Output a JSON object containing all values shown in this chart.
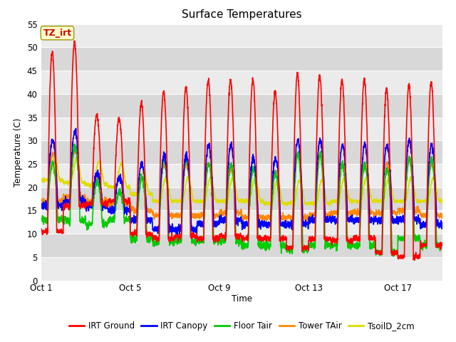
{
  "title": "Surface Temperatures",
  "ylabel": "Temperature (C)",
  "xlabel": "Time",
  "xlim_days": 18,
  "ylim": [
    0,
    55
  ],
  "yticks": [
    0,
    5,
    10,
    15,
    20,
    25,
    30,
    35,
    40,
    45,
    50,
    55
  ],
  "xtick_labels": [
    "Oct 1",
    "Oct 5",
    "Oct 9",
    "Oct 13",
    "Oct 17"
  ],
  "xtick_positions": [
    0,
    4,
    8,
    12,
    16
  ],
  "series": {
    "IRT Ground": {
      "color": "#ff0000",
      "lw": 1.2
    },
    "IRT Canopy": {
      "color": "#0000ff",
      "lw": 1.2
    },
    "Floor Tair": {
      "color": "#00cc00",
      "lw": 1.2
    },
    "Tower TAir": {
      "color": "#ff8800",
      "lw": 1.2
    },
    "TsoilD_2cm": {
      "color": "#dddd00",
      "lw": 1.2
    }
  },
  "annotation_text": "TZ_irt",
  "annotation_color": "#cc0000",
  "annotation_bg": "#ffffcc",
  "annotation_edge": "#999900",
  "plot_bg_light": "#ebebeb",
  "plot_bg_dark": "#d8d8d8",
  "title_fontsize": 11,
  "tick_fontsize": 8.5,
  "label_fontsize": 8.5,
  "legend_fontsize": 8.5,
  "n_days": 18,
  "pts_per_day": 144
}
